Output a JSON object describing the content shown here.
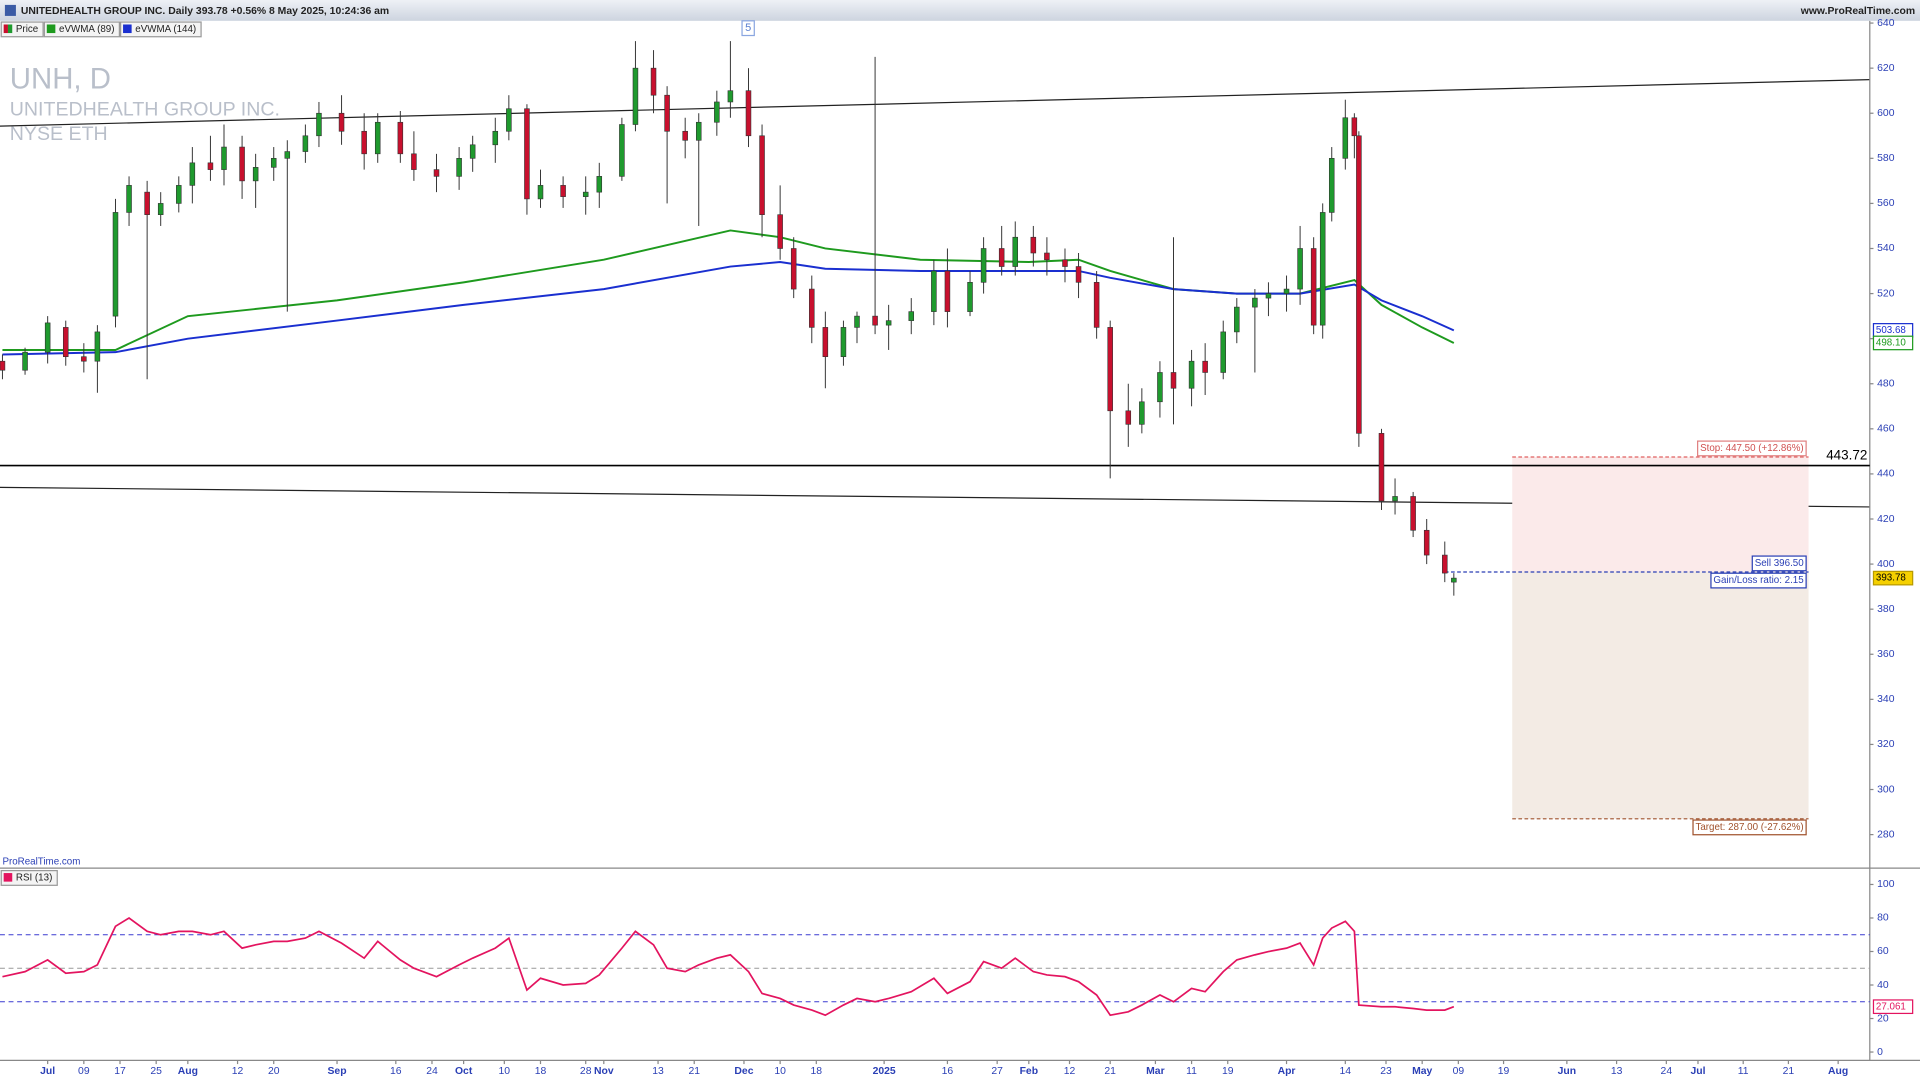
{
  "chart_data": {
    "type": "candlestick",
    "title": "UNITEDHEALTH GROUP INC. Daily 393.78 +0.56% 8 May 2025, 10:24:36 am",
    "source": "www.ProRealTime.com",
    "watermark": [
      "UNH, D",
      "UNITEDHEALTH GROUP INC.",
      "NYSE ETH"
    ],
    "credit": "ProRealTime.com",
    "marker": "5",
    "price_name": "Price",
    "up_color": "#1f9a2e",
    "down_color": "#c8102e",
    "x": [
      "2024-06-21",
      "2024-06-26",
      "2024-07-01",
      "2024-07-05",
      "2024-07-09",
      "2024-07-12",
      "2024-07-16",
      "2024-07-19",
      "2024-07-23",
      "2024-07-26",
      "2024-07-30",
      "2024-08-02",
      "2024-08-06",
      "2024-08-09",
      "2024-08-13",
      "2024-08-16",
      "2024-08-20",
      "2024-08-23",
      "2024-08-27",
      "2024-08-30",
      "2024-09-04",
      "2024-09-09",
      "2024-09-12",
      "2024-09-17",
      "2024-09-20",
      "2024-09-25",
      "2024-09-30",
      "2024-10-03",
      "2024-10-08",
      "2024-10-11",
      "2024-10-15",
      "2024-10-18",
      "2024-10-23",
      "2024-10-28",
      "2024-10-31",
      "2024-11-05",
      "2024-11-08",
      "2024-11-12",
      "2024-11-15",
      "2024-11-19",
      "2024-11-22",
      "2024-11-26",
      "2024-11-29",
      "2024-12-03",
      "2024-12-06",
      "2024-12-10",
      "2024-12-13",
      "2024-12-17",
      "2024-12-20",
      "2024-12-24",
      "2024-12-27",
      "2024-12-31",
      "2025-01-03",
      "2025-01-08",
      "2025-01-13",
      "2025-01-16",
      "2025-01-21",
      "2025-01-24",
      "2025-01-28",
      "2025-01-31",
      "2025-02-04",
      "2025-02-07",
      "2025-02-11",
      "2025-02-14",
      "2025-02-18",
      "2025-02-21",
      "2025-02-25",
      "2025-02-28",
      "2025-03-04",
      "2025-03-07",
      "2025-03-11",
      "2025-03-14",
      "2025-03-18",
      "2025-03-21",
      "2025-03-25",
      "2025-03-28",
      "2025-04-01",
      "2025-04-04",
      "2025-04-07",
      "2025-04-09",
      "2025-04-11",
      "2025-04-14",
      "2025-04-16",
      "2025-04-17",
      "2025-04-22",
      "2025-04-25",
      "2025-04-29",
      "2025-05-02",
      "2025-05-06",
      "2025-05-08"
    ],
    "open": [
      490,
      486,
      494,
      505,
      492,
      490,
      510,
      556,
      565,
      555,
      560,
      568,
      578,
      575,
      585,
      570,
      576,
      580,
      583,
      590,
      600,
      592,
      582,
      596,
      582,
      575,
      572,
      580,
      586,
      592,
      602,
      562,
      568,
      563,
      565,
      572,
      595,
      620,
      608,
      592,
      588,
      596,
      605,
      610,
      590,
      555,
      540,
      522,
      505,
      492,
      505,
      510,
      506,
      508,
      512,
      530,
      512,
      525,
      540,
      532,
      545,
      538,
      535,
      532,
      525,
      505,
      468,
      462,
      472,
      485,
      478,
      490,
      485,
      503,
      514,
      518,
      520,
      522,
      540,
      506,
      556,
      580,
      598,
      590,
      458,
      428,
      430,
      415,
      404,
      392
    ],
    "high": [
      493,
      496,
      510,
      508,
      498,
      506,
      562,
      572,
      570,
      565,
      572,
      585,
      590,
      595,
      590,
      582,
      585,
      588,
      595,
      605,
      608,
      600,
      600,
      601,
      592,
      582,
      585,
      590,
      598,
      608,
      604,
      575,
      572,
      572,
      578,
      598,
      632,
      628,
      612,
      598,
      600,
      610,
      632,
      620,
      595,
      568,
      545,
      528,
      512,
      508,
      512,
      625,
      515,
      518,
      535,
      540,
      530,
      545,
      550,
      552,
      550,
      545,
      540,
      538,
      530,
      508,
      480,
      478,
      490,
      545,
      495,
      498,
      508,
      518,
      522,
      525,
      528,
      550,
      545,
      560,
      585,
      606,
      600,
      592,
      460,
      438,
      432,
      420,
      410,
      396
    ],
    "low": [
      482,
      484,
      489,
      488,
      485,
      476,
      505,
      550,
      482,
      550,
      556,
      560,
      570,
      568,
      562,
      558,
      570,
      512,
      578,
      585,
      586,
      575,
      578,
      578,
      570,
      565,
      566,
      574,
      578,
      588,
      555,
      558,
      558,
      555,
      558,
      570,
      592,
      600,
      560,
      580,
      550,
      590,
      598,
      585,
      545,
      535,
      518,
      498,
      478,
      488,
      498,
      502,
      495,
      502,
      506,
      505,
      510,
      520,
      528,
      528,
      532,
      528,
      525,
      518,
      500,
      438,
      452,
      458,
      465,
      462,
      470,
      475,
      482,
      498,
      485,
      510,
      512,
      515,
      502,
      500,
      552,
      575,
      580,
      452,
      424,
      422,
      412,
      400,
      392,
      386
    ],
    "close": [
      486,
      494,
      507,
      492,
      490,
      503,
      556,
      568,
      555,
      560,
      568,
      578,
      575,
      585,
      570,
      576,
      580,
      583,
      590,
      600,
      592,
      582,
      596,
      582,
      575,
      572,
      580,
      586,
      592,
      602,
      562,
      568,
      563,
      565,
      572,
      595,
      620,
      608,
      592,
      588,
      596,
      605,
      610,
      590,
      555,
      540,
      522,
      505,
      492,
      505,
      510,
      506,
      508,
      512,
      530,
      512,
      525,
      540,
      532,
      545,
      538,
      535,
      532,
      525,
      505,
      468,
      462,
      472,
      485,
      478,
      490,
      485,
      503,
      514,
      518,
      520,
      522,
      540,
      506,
      556,
      580,
      598,
      590,
      458,
      428,
      430,
      415,
      404,
      396,
      393.78
    ],
    "xlim": [
      "2024-06-21",
      "2025-08-08"
    ],
    "xticks": [
      {
        "value": "2024-07-01",
        "label": "Jul"
      },
      {
        "value": "2024-07-09",
        "label": "09"
      },
      {
        "value": "2024-07-17",
        "label": "17"
      },
      {
        "value": "2024-07-25",
        "label": "25"
      },
      {
        "value": "2024-08-01",
        "label": "Aug"
      },
      {
        "value": "2024-08-12",
        "label": "12"
      },
      {
        "value": "2024-08-20",
        "label": "20"
      },
      {
        "value": "2024-09-03",
        "label": "Sep"
      },
      {
        "value": "2024-09-16",
        "label": "16"
      },
      {
        "value": "2024-09-24",
        "label": "24"
      },
      {
        "value": "2024-10-01",
        "label": "Oct"
      },
      {
        "value": "2024-10-10",
        "label": "10"
      },
      {
        "value": "2024-10-18",
        "label": "18"
      },
      {
        "value": "2024-10-28",
        "label": "28"
      },
      {
        "value": "2024-11-01",
        "label": "Nov"
      },
      {
        "value": "2024-11-13",
        "label": "13"
      },
      {
        "value": "2024-11-21",
        "label": "21"
      },
      {
        "value": "2024-12-02",
        "label": "Dec"
      },
      {
        "value": "2024-12-10",
        "label": "10"
      },
      {
        "value": "2024-12-18",
        "label": "18"
      },
      {
        "value": "2025-01-02",
        "label": "2025"
      },
      {
        "value": "2025-01-16",
        "label": "16"
      },
      {
        "value": "2025-01-27",
        "label": "27"
      },
      {
        "value": "2025-02-03",
        "label": "Feb"
      },
      {
        "value": "2025-02-12",
        "label": "12"
      },
      {
        "value": "2025-02-21",
        "label": "21"
      },
      {
        "value": "2025-03-03",
        "label": "Mar"
      },
      {
        "value": "2025-03-11",
        "label": "11"
      },
      {
        "value": "2025-03-19",
        "label": "19"
      },
      {
        "value": "2025-04-01",
        "label": "Apr"
      },
      {
        "value": "2025-04-14",
        "label": "14"
      },
      {
        "value": "2025-04-23",
        "label": "23"
      },
      {
        "value": "2025-05-01",
        "label": "May"
      },
      {
        "value": "2025-05-09",
        "label": "09"
      },
      {
        "value": "2025-05-19",
        "label": "19"
      },
      {
        "value": "2025-06-02",
        "label": "Jun"
      },
      {
        "value": "2025-06-13",
        "label": "13"
      },
      {
        "value": "2025-06-24",
        "label": "24"
      },
      {
        "value": "2025-07-01",
        "label": "Jul"
      },
      {
        "value": "2025-07-11",
        "label": "11"
      },
      {
        "value": "2025-07-21",
        "label": "21"
      },
      {
        "value": "2025-08-01",
        "label": "Aug"
      }
    ],
    "ylim": [
      270,
      641
    ],
    "yticks": [
      280,
      300,
      320,
      340,
      360,
      380,
      400,
      420,
      440,
      460,
      480,
      500,
      520,
      540,
      560,
      580,
      600,
      620,
      640
    ],
    "overlays": {
      "x": [
        "2024-06-21",
        "2024-07-16",
        "2024-08-01",
        "2024-09-03",
        "2024-10-01",
        "2024-11-01",
        "2024-11-29",
        "2024-12-10",
        "2024-12-20",
        "2025-01-10",
        "2025-02-03",
        "2025-02-14",
        "2025-02-21",
        "2025-03-07",
        "2025-03-21",
        "2025-04-04",
        "2025-04-16",
        "2025-04-22",
        "2025-05-01",
        "2025-05-08"
      ],
      "series": [
        {
          "name": "eVWMA (89)",
          "color": "#1e9a1e",
          "values": [
            495,
            495,
            510,
            517,
            525,
            535,
            548,
            545,
            540,
            535,
            534,
            535,
            530,
            522,
            520,
            520,
            526,
            515,
            505,
            498.1
          ],
          "value_labels": [
            null,
            null,
            null,
            null,
            null,
            null,
            null,
            null,
            null,
            null,
            null,
            null,
            null,
            null,
            null,
            null,
            null,
            null,
            null,
            "498.10"
          ]
        },
        {
          "name": "eVWMA (144)",
          "color": "#1a2fd0",
          "values": [
            493,
            494,
            500,
            508,
            515,
            522,
            532,
            534,
            531,
            530,
            530,
            530,
            527,
            522,
            520,
            520,
            524,
            517,
            510,
            503.68
          ]
        }
      ]
    },
    "hline": 443.72,
    "position": {
      "stop": {
        "value": 447.5,
        "label": "Stop: 447.50 (+12.86%)"
      },
      "entry": {
        "value": 396.5,
        "label": "Sell 396.50"
      },
      "ratio": "Gain/Loss ratio: 2.15",
      "target": {
        "value": 287,
        "label": "Target: 287.00 (-27.62%)"
      }
    },
    "rsi": {
      "name": "RSI (13)",
      "color": "#e3145f",
      "values": [
        45,
        48,
        55,
        47,
        48,
        52,
        75,
        80,
        72,
        70,
        72,
        72,
        70,
        72,
        62,
        64,
        66,
        66,
        68,
        72,
        65,
        56,
        66,
        55,
        50,
        45,
        52,
        56,
        62,
        68,
        37,
        44,
        40,
        41,
        46,
        62,
        72,
        64,
        50,
        48,
        52,
        56,
        58,
        48,
        35,
        32,
        28,
        25,
        22,
        28,
        32,
        30,
        32,
        36,
        44,
        35,
        42,
        54,
        50,
        56,
        48,
        46,
        45,
        42,
        34,
        22,
        24,
        28,
        34,
        30,
        38,
        36,
        48,
        55,
        58,
        60,
        62,
        65,
        52,
        68,
        74,
        78,
        72,
        28,
        27,
        27,
        26,
        25,
        25,
        27.061
      ],
      "ylim": [
        -5,
        109
      ],
      "yticks": [
        0,
        20,
        40,
        60,
        80,
        100
      ],
      "levels": [
        30,
        50,
        70
      ]
    }
  }
}
